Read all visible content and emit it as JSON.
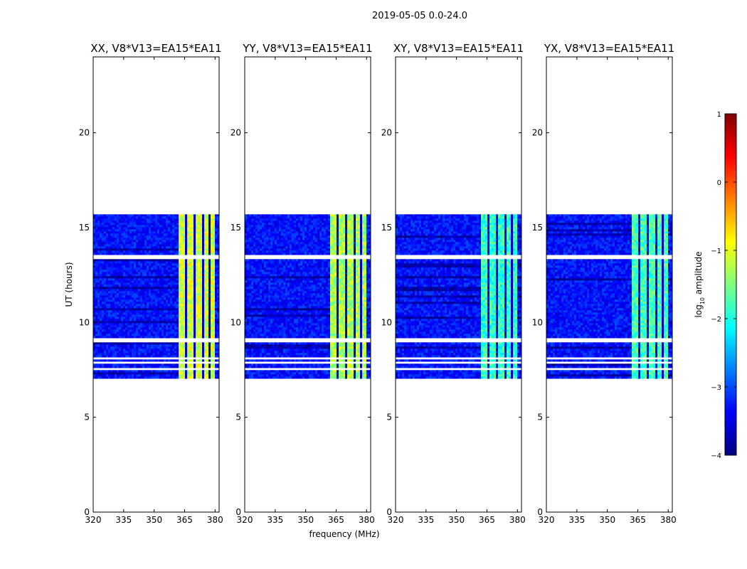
{
  "chart_data": {
    "type": "heatmap",
    "suptitle": "2019-05-05 0.0-24.0",
    "xlabel": "frequency (MHz)",
    "ylabel": "UT (hours)",
    "xlim": [
      320,
      382
    ],
    "ylim": [
      0,
      24
    ],
    "xticks": [
      320,
      335,
      350,
      365,
      380
    ],
    "yticks": [
      0,
      5,
      10,
      15,
      20
    ],
    "panels": [
      {
        "title": "XX, V8*V13=EA15*EA11",
        "polarization": "XX",
        "band_level": -1.1
      },
      {
        "title": "YY, V8*V13=EA15*EA11",
        "polarization": "YY",
        "band_level": -1.3
      },
      {
        "title": "XY, V8*V13=EA15*EA11",
        "polarization": "XY",
        "band_level": -1.9
      },
      {
        "title": "YX, V8*V13=EA15*EA11",
        "polarization": "YX",
        "band_level": -1.8
      }
    ],
    "data_time_range": [
      7.1,
      15.7
    ],
    "background_level": -3.3,
    "rfi_band_freq_range": [
      362,
      382
    ],
    "flagged_time_rows": [
      7.6,
      7.95,
      8.15,
      9.05,
      9.15,
      13.45,
      13.55
    ],
    "colorbar": {
      "label": "log10 amplitude",
      "label_main": "log",
      "label_sub": "10",
      "label_rest": " amplitude",
      "range": [
        -4,
        1
      ],
      "ticks": [
        1,
        0,
        -1,
        -2,
        -3,
        -4
      ],
      "colormap": [
        "#00007f",
        "#0000ff",
        "#007fff",
        "#00ffff",
        "#7fff7f",
        "#ffff00",
        "#ff7f00",
        "#ff0000",
        "#7f0000"
      ]
    }
  }
}
